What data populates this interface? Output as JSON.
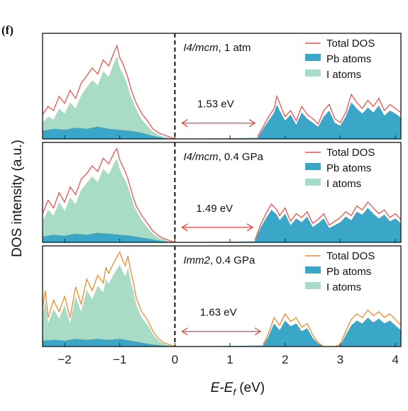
{
  "panel_label": "(f)",
  "chart_data": {
    "type": "area",
    "xlabel_main": "E-E",
    "xlabel_sub": "f",
    "xlabel_unit": " (eV)",
    "ylabel": "DOS intensity (a.u.)",
    "xlim": [
      -2.4,
      4.1
    ],
    "xticks": [
      -2,
      -1,
      0,
      1,
      2,
      3,
      4
    ],
    "xtick_labels": [
      "−2",
      "−1",
      "0",
      "1",
      "2",
      "3",
      "4"
    ],
    "fermi_level": 0,
    "legend_position": "top-right",
    "colors": {
      "total_red": "#e8534f",
      "total_orange": "#ee8a2c",
      "pb": "#3aa6c8",
      "i": "#a9dcc6",
      "arrow": "#e8534f",
      "frame": "#222222"
    },
    "panels": [
      {
        "phase": "I4/mcm",
        "condition": ", 1 atm",
        "band_gap_label": "1.53 eV",
        "gap_range": [
          0.0,
          1.53
        ],
        "total_color": "#e8534f",
        "legend": [
          "Total DOS",
          "Pb atoms",
          "I atoms"
        ],
        "series": [
          {
            "name": "Total DOS",
            "x": [
              -2.4,
              -2.3,
              -2.2,
              -2.1,
              -2.0,
              -1.9,
              -1.8,
              -1.7,
              -1.6,
              -1.5,
              -1.4,
              -1.3,
              -1.2,
              -1.1,
              -1.05,
              -1.0,
              -0.95,
              -0.9,
              -0.85,
              -0.8,
              -0.75,
              -0.7,
              -0.6,
              -0.5,
              -0.4,
              -0.3,
              -0.2,
              -0.1,
              0.0,
              1.5,
              1.6,
              1.7,
              1.8,
              1.85,
              1.9,
              2.0,
              2.1,
              2.2,
              2.3,
              2.4,
              2.5,
              2.6,
              2.7,
              2.8,
              2.9,
              3.0,
              3.1,
              3.2,
              3.3,
              3.4,
              3.5,
              3.6,
              3.7,
              3.8,
              3.9,
              4.0,
              4.1
            ],
            "y": [
              0.24,
              0.32,
              0.28,
              0.42,
              0.35,
              0.48,
              0.4,
              0.55,
              0.62,
              0.7,
              0.64,
              0.78,
              0.72,
              0.86,
              0.92,
              0.8,
              0.75,
              0.68,
              0.6,
              0.5,
              0.42,
              0.35,
              0.25,
              0.18,
              0.1,
              0.06,
              0.04,
              0.02,
              0.0,
              0.02,
              0.12,
              0.22,
              0.3,
              0.42,
              0.35,
              0.22,
              0.28,
              0.18,
              0.32,
              0.24,
              0.2,
              0.15,
              0.28,
              0.34,
              0.2,
              0.16,
              0.26,
              0.44,
              0.36,
              0.3,
              0.38,
              0.32,
              0.4,
              0.28,
              0.34,
              0.3,
              0.26
            ]
          },
          {
            "name": "Pb atoms",
            "x": [
              -2.4,
              -2.2,
              -2.0,
              -1.8,
              -1.6,
              -1.4,
              -1.2,
              -1.0,
              -0.8,
              -0.6,
              -0.4,
              -0.2,
              0.0,
              1.5,
              1.6,
              1.7,
              1.8,
              1.85,
              1.9,
              2.0,
              2.1,
              2.2,
              2.3,
              2.4,
              2.5,
              2.6,
              2.7,
              2.8,
              2.9,
              3.0,
              3.1,
              3.2,
              3.3,
              3.4,
              3.5,
              3.6,
              3.7,
              3.8,
              3.9,
              4.0,
              4.1
            ],
            "y": [
              0.08,
              0.1,
              0.09,
              0.11,
              0.1,
              0.12,
              0.1,
              0.09,
              0.08,
              0.06,
              0.03,
              0.01,
              0.0,
              0.01,
              0.1,
              0.18,
              0.26,
              0.34,
              0.28,
              0.18,
              0.24,
              0.14,
              0.26,
              0.2,
              0.16,
              0.12,
              0.22,
              0.28,
              0.16,
              0.13,
              0.22,
              0.36,
              0.3,
              0.25,
              0.31,
              0.26,
              0.33,
              0.23,
              0.28,
              0.25,
              0.21
            ]
          },
          {
            "name": "I atoms",
            "x": [
              -2.4,
              -2.3,
              -2.2,
              -2.1,
              -2.0,
              -1.9,
              -1.8,
              -1.7,
              -1.6,
              -1.5,
              -1.4,
              -1.3,
              -1.2,
              -1.1,
              -1.05,
              -1.0,
              -0.95,
              -0.9,
              -0.85,
              -0.8,
              -0.75,
              -0.7,
              -0.6,
              -0.5,
              -0.4,
              -0.3,
              -0.2,
              -0.1,
              0.0
            ],
            "y": [
              0.16,
              0.22,
              0.19,
              0.3,
              0.25,
              0.36,
              0.3,
              0.43,
              0.51,
              0.58,
              0.53,
              0.67,
              0.61,
              0.76,
              0.82,
              0.7,
              0.65,
              0.59,
              0.51,
              0.42,
              0.36,
              0.29,
              0.19,
              0.13,
              0.07,
              0.04,
              0.02,
              0.01,
              0.0
            ]
          }
        ]
      },
      {
        "phase": "I4/mcm",
        "condition": ", 0.4 GPa",
        "band_gap_label": "1.49 eV",
        "gap_range": [
          0.0,
          1.49
        ],
        "total_color": "#e8534f",
        "legend": [
          "Total DOS",
          "Pb atoms",
          "I atoms"
        ],
        "series": [
          {
            "name": "Total DOS",
            "x": [
              -2.4,
              -2.3,
              -2.2,
              -2.1,
              -2.0,
              -1.9,
              -1.8,
              -1.7,
              -1.6,
              -1.5,
              -1.4,
              -1.3,
              -1.2,
              -1.1,
              -1.05,
              -1.0,
              -0.95,
              -0.9,
              -0.85,
              -0.8,
              -0.75,
              -0.7,
              -0.6,
              -0.5,
              -0.4,
              -0.3,
              -0.2,
              -0.1,
              0.0,
              1.45,
              1.55,
              1.65,
              1.75,
              1.85,
              1.9,
              2.0,
              2.1,
              2.2,
              2.3,
              2.4,
              2.5,
              2.6,
              2.7,
              2.8,
              2.9,
              3.0,
              3.1,
              3.2,
              3.3,
              3.4,
              3.5,
              3.6,
              3.7,
              3.8,
              3.9,
              4.0,
              4.1
            ],
            "y": [
              0.3,
              0.44,
              0.36,
              0.52,
              0.42,
              0.58,
              0.5,
              0.66,
              0.72,
              0.8,
              0.74,
              0.88,
              0.82,
              0.94,
              0.98,
              0.86,
              0.8,
              0.74,
              0.66,
              0.56,
              0.46,
              0.38,
              0.28,
              0.2,
              0.12,
              0.07,
              0.04,
              0.02,
              0.0,
              0.02,
              0.18,
              0.3,
              0.4,
              0.34,
              0.28,
              0.36,
              0.22,
              0.3,
              0.26,
              0.32,
              0.2,
              0.24,
              0.3,
              0.18,
              0.22,
              0.26,
              0.32,
              0.28,
              0.38,
              0.34,
              0.42,
              0.36,
              0.3,
              0.34,
              0.26,
              0.3,
              0.24
            ]
          },
          {
            "name": "Pb atoms",
            "x": [
              -2.4,
              -2.2,
              -2.0,
              -1.8,
              -1.6,
              -1.4,
              -1.2,
              -1.0,
              -0.8,
              -0.6,
              -0.4,
              -0.2,
              0.0,
              1.45,
              1.55,
              1.65,
              1.75,
              1.85,
              1.9,
              2.0,
              2.1,
              2.2,
              2.3,
              2.4,
              2.5,
              2.6,
              2.7,
              2.8,
              2.9,
              3.0,
              3.1,
              3.2,
              3.3,
              3.4,
              3.5,
              3.6,
              3.7,
              3.8,
              3.9,
              4.0,
              4.1
            ],
            "y": [
              0.06,
              0.08,
              0.07,
              0.09,
              0.08,
              0.1,
              0.09,
              0.08,
              0.07,
              0.05,
              0.03,
              0.01,
              0.0,
              0.01,
              0.15,
              0.25,
              0.34,
              0.29,
              0.23,
              0.3,
              0.18,
              0.25,
              0.21,
              0.27,
              0.16,
              0.2,
              0.25,
              0.15,
              0.18,
              0.21,
              0.27,
              0.23,
              0.32,
              0.29,
              0.36,
              0.3,
              0.25,
              0.29,
              0.22,
              0.25,
              0.2
            ]
          },
          {
            "name": "I atoms",
            "x": [
              -2.4,
              -2.3,
              -2.2,
              -2.1,
              -2.0,
              -1.9,
              -1.8,
              -1.7,
              -1.6,
              -1.5,
              -1.4,
              -1.3,
              -1.2,
              -1.1,
              -1.05,
              -1.0,
              -0.95,
              -0.9,
              -0.85,
              -0.8,
              -0.75,
              -0.7,
              -0.6,
              -0.5,
              -0.4,
              -0.3,
              -0.2,
              -0.1,
              0.0
            ],
            "y": [
              0.22,
              0.34,
              0.28,
              0.42,
              0.33,
              0.47,
              0.4,
              0.55,
              0.62,
              0.69,
              0.63,
              0.77,
              0.71,
              0.83,
              0.88,
              0.76,
              0.7,
              0.65,
              0.58,
              0.49,
              0.4,
              0.33,
              0.23,
              0.16,
              0.09,
              0.05,
              0.03,
              0.01,
              0.0
            ]
          }
        ]
      },
      {
        "phase": "Imm2",
        "condition": ", 0.4 GPa",
        "band_gap_label": "1.63 eV",
        "gap_range": [
          0.0,
          1.63
        ],
        "total_color": "#ee8a2c",
        "legend": [
          "Total DOS",
          "Pb atoms",
          "I atoms"
        ],
        "series": [
          {
            "name": "Total DOS",
            "x": [
              -2.4,
              -2.35,
              -2.3,
              -2.2,
              -2.1,
              -2.0,
              -1.9,
              -1.8,
              -1.7,
              -1.6,
              -1.5,
              -1.4,
              -1.3,
              -1.25,
              -1.2,
              -1.1,
              -1.0,
              -0.95,
              -0.9,
              -0.85,
              -0.8,
              -0.75,
              -0.7,
              -0.6,
              -0.5,
              -0.45,
              -0.4,
              -0.3,
              -0.2,
              -0.1,
              0.0,
              1.6,
              1.7,
              1.8,
              1.9,
              2.0,
              2.1,
              2.2,
              2.3,
              2.4,
              2.5,
              2.6,
              2.7,
              2.8,
              2.9,
              3.0,
              3.1,
              3.2,
              3.3,
              3.4,
              3.5,
              3.6,
              3.7,
              3.8,
              3.9,
              4.0,
              4.1
            ],
            "y": [
              0.4,
              0.58,
              0.3,
              0.48,
              0.36,
              0.52,
              0.3,
              0.62,
              0.44,
              0.7,
              0.58,
              0.74,
              0.66,
              0.82,
              0.76,
              0.88,
              0.98,
              0.9,
              0.84,
              0.94,
              0.78,
              0.66,
              0.5,
              0.36,
              0.28,
              0.22,
              0.16,
              0.08,
              0.04,
              0.02,
              0.0,
              0.02,
              0.14,
              0.3,
              0.22,
              0.34,
              0.26,
              0.3,
              0.2,
              0.24,
              0.12,
              0.04,
              0.0,
              0.0,
              0.0,
              0.02,
              0.16,
              0.28,
              0.34,
              0.3,
              0.38,
              0.32,
              0.36,
              0.3,
              0.34,
              0.28,
              0.22
            ]
          },
          {
            "name": "Pb atoms",
            "x": [
              -2.4,
              -2.2,
              -2.0,
              -1.8,
              -1.6,
              -1.4,
              -1.2,
              -1.0,
              -0.8,
              -0.6,
              -0.4,
              -0.2,
              0.0,
              1.6,
              1.7,
              1.8,
              1.9,
              2.0,
              2.1,
              2.2,
              2.3,
              2.4,
              2.5,
              2.6,
              2.7,
              2.8,
              2.9,
              3.0,
              3.1,
              3.2,
              3.3,
              3.4,
              3.5,
              3.6,
              3.7,
              3.8,
              3.9,
              4.0,
              4.1
            ],
            "y": [
              0.06,
              0.07,
              0.06,
              0.08,
              0.07,
              0.08,
              0.07,
              0.08,
              0.06,
              0.04,
              0.02,
              0.01,
              0.0,
              0.01,
              0.11,
              0.24,
              0.17,
              0.27,
              0.21,
              0.24,
              0.16,
              0.19,
              0.09,
              0.03,
              0.0,
              0.0,
              0.0,
              0.01,
              0.12,
              0.22,
              0.27,
              0.24,
              0.3,
              0.25,
              0.29,
              0.24,
              0.27,
              0.22,
              0.17
            ]
          },
          {
            "name": "I atoms",
            "x": [
              -2.4,
              -2.35,
              -2.3,
              -2.2,
              -2.1,
              -2.0,
              -1.9,
              -1.8,
              -1.7,
              -1.6,
              -1.5,
              -1.4,
              -1.3,
              -1.25,
              -1.2,
              -1.1,
              -1.0,
              -0.95,
              -0.9,
              -0.85,
              -0.8,
              -0.75,
              -0.7,
              -0.6,
              -0.5,
              -0.45,
              -0.4,
              -0.3,
              -0.2,
              -0.1,
              0.0
            ],
            "y": [
              0.32,
              0.48,
              0.24,
              0.39,
              0.29,
              0.43,
              0.24,
              0.52,
              0.36,
              0.59,
              0.49,
              0.63,
              0.56,
              0.7,
              0.65,
              0.76,
              0.85,
              0.78,
              0.73,
              0.82,
              0.67,
              0.57,
              0.43,
              0.3,
              0.23,
              0.18,
              0.13,
              0.06,
              0.03,
              0.01,
              0.0
            ]
          }
        ]
      }
    ]
  }
}
